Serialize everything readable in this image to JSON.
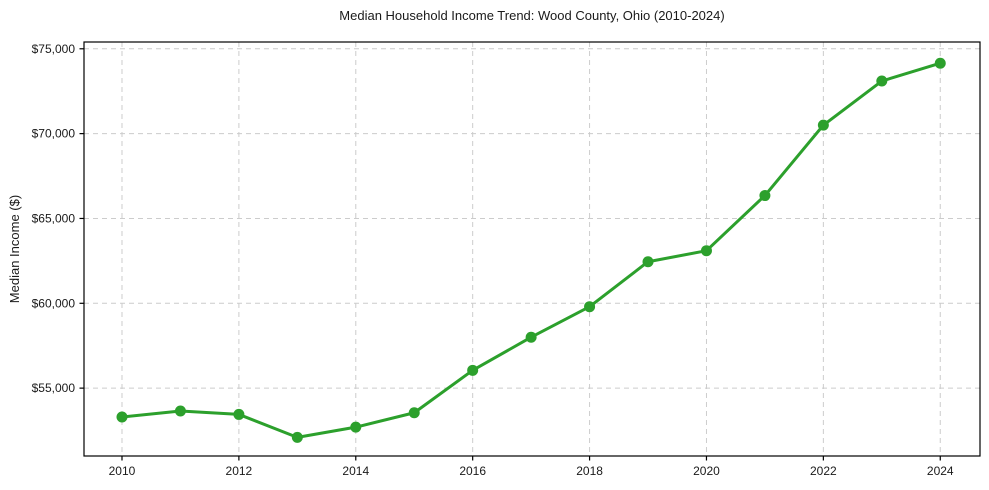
{
  "page": {
    "background_color": "#ffffff"
  },
  "chart_data": {
    "type": "line",
    "title": "Median Household Income Trend: Wood County, Ohio (2010-2024)",
    "xlabel": "",
    "ylabel": "Median Income ($)",
    "series": [
      {
        "name": "Median Household Income",
        "x": [
          2010,
          2011,
          2012,
          2013,
          2014,
          2015,
          2016,
          2017,
          2018,
          2019,
          2020,
          2021,
          2022,
          2023,
          2024
        ],
        "values": [
          53300,
          53650,
          53450,
          52100,
          52700,
          53550,
          56050,
          58000,
          59800,
          62450,
          63100,
          66350,
          70500,
          73100,
          74150
        ]
      }
    ],
    "x_ticks": [
      2010,
      2012,
      2014,
      2016,
      2018,
      2020,
      2022,
      2024
    ],
    "x_tick_labels": [
      "2010",
      "2012",
      "2014",
      "2016",
      "2018",
      "2020",
      "2022",
      "2024"
    ],
    "y_ticks": [
      55000,
      60000,
      65000,
      70000,
      75000
    ],
    "y_tick_labels": [
      "$55,000",
      "$60,000",
      "$65,000",
      "$70,000",
      "$75,000"
    ],
    "xlim": [
      2009.35,
      2024.68
    ],
    "ylim": [
      51000,
      75400
    ],
    "grid": true,
    "grid_style": "dashed",
    "legend": "none",
    "line_color": "#2ca02c",
    "marker_color": "#2ca02c",
    "marker_radius": 5.5,
    "line_width": 3,
    "grid_color": "#cccccc",
    "spine_color": "#000000",
    "text_color": "#1a1a1a"
  }
}
